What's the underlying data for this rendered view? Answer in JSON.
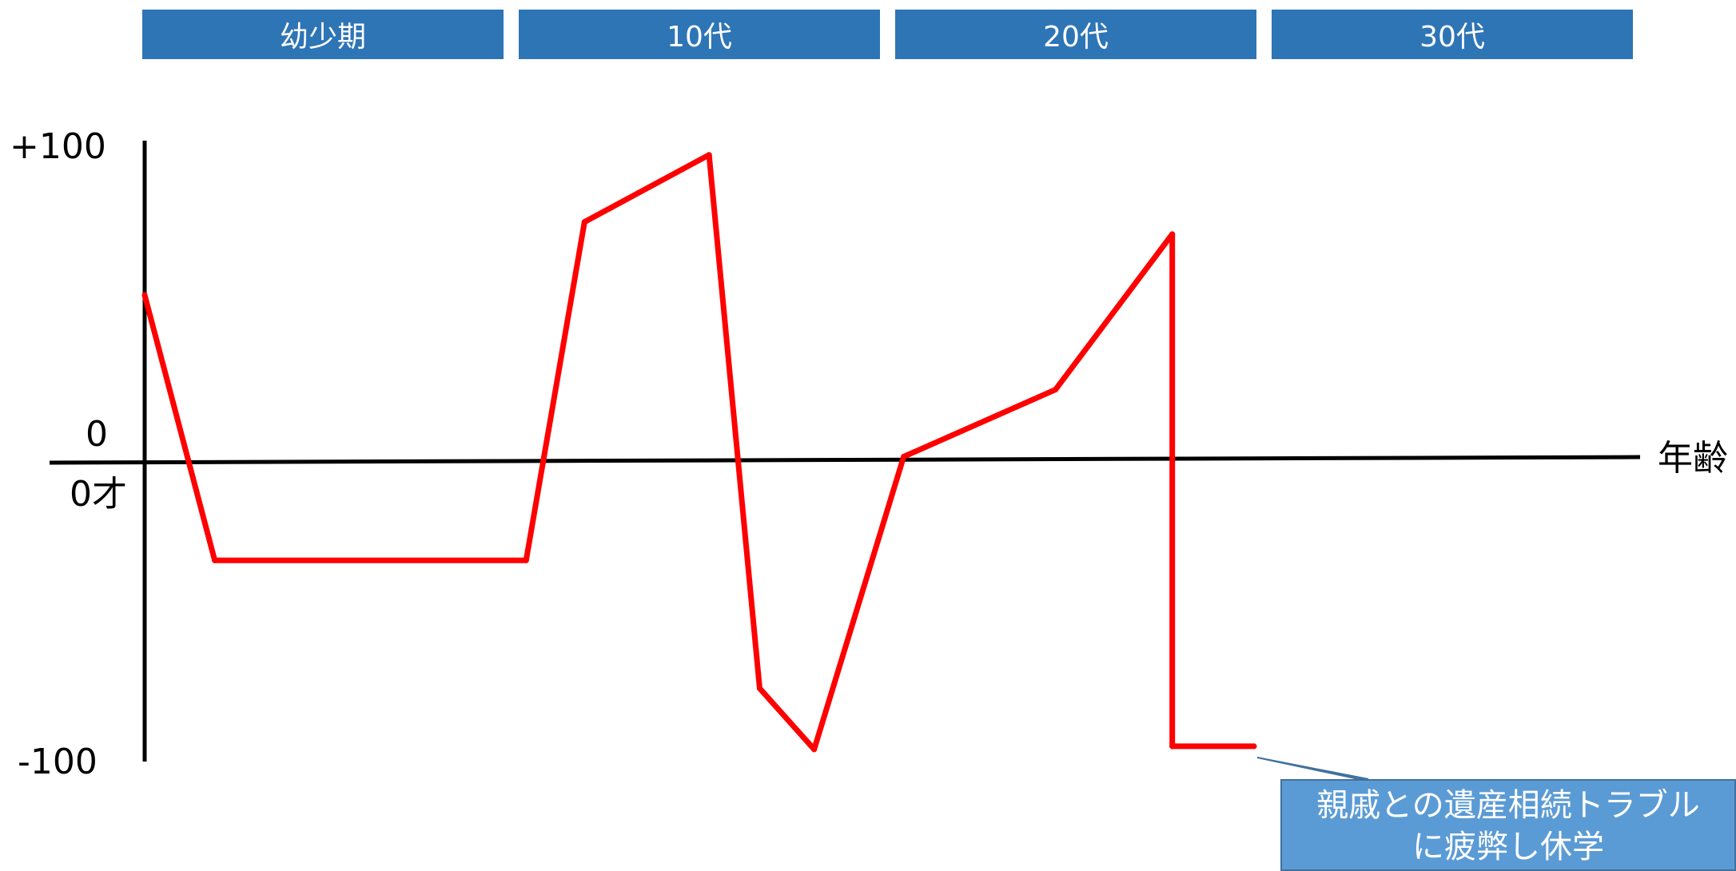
{
  "periods": [
    {
      "label": "幼少期"
    },
    {
      "label": "10代"
    },
    {
      "label": "20代"
    },
    {
      "label": "30代"
    }
  ],
  "chart_data": {
    "type": "line",
    "ylim": [
      -100,
      100
    ],
    "ytick_labels": [
      "+100",
      "0",
      "-100"
    ],
    "x_origin_label": "0才",
    "xlabel": "年齢",
    "line_color": "#ff0000",
    "series": [
      {
        "x": [
          0,
          1.8,
          9.8,
          11.3,
          14.5,
          15.8,
          17.2,
          19.5,
          23.4,
          26.4,
          26.4,
          28.5
        ],
        "y": [
          53,
          -34,
          -34,
          77,
          99,
          -76,
          -96,
          0,
          22,
          73,
          -95,
          -95
        ]
      }
    ],
    "annotation": {
      "line1": "親戚との遺産相続トラブル",
      "line2": "に疲弊し休学",
      "color": "#5b9bd5"
    }
  }
}
